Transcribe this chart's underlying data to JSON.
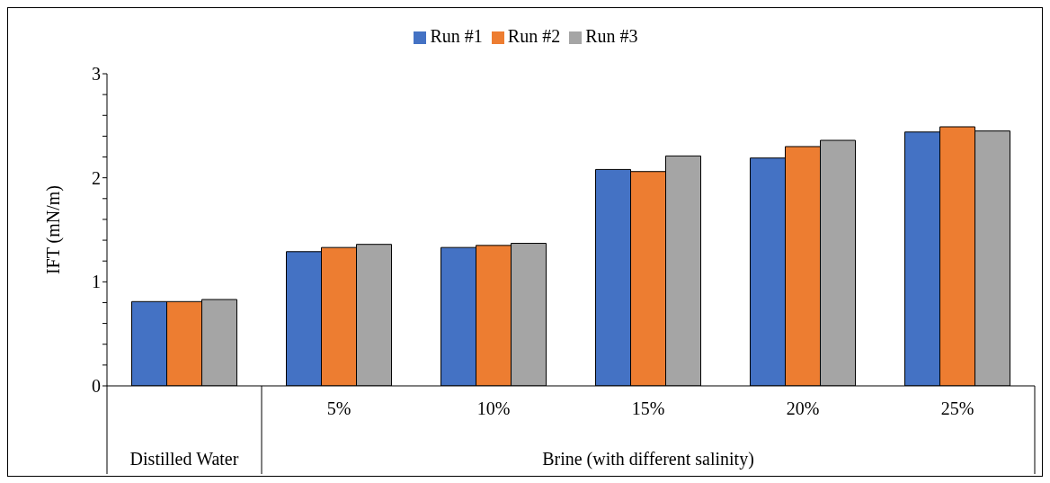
{
  "chart_data": {
    "type": "bar",
    "ylabel": "IFT (mN/m)",
    "categories": [
      null,
      "5%",
      "10%",
      "15%",
      "20%",
      "25%"
    ],
    "series": [
      {
        "name": "Run #1",
        "color": "#4472c4",
        "values": [
          0.81,
          1.29,
          1.33,
          2.08,
          2.19,
          2.44
        ]
      },
      {
        "name": "Run #2",
        "color": "#ed7d31",
        "values": [
          0.81,
          1.33,
          1.35,
          2.06,
          2.3,
          2.49
        ]
      },
      {
        "name": "Run #3",
        "color": "#a5a5a5",
        "values": [
          0.83,
          1.36,
          1.37,
          2.21,
          2.36,
          2.45
        ]
      }
    ],
    "ylim": [
      0,
      3
    ],
    "yticks": [
      0,
      {
        "value": 0.2,
        "label": null
      },
      {
        "value": 0.4,
        "label": null
      },
      {
        "value": 0.6,
        "label": null
      },
      {
        "value": 0.8,
        "label": null
      },
      1,
      {
        "value": 1.2,
        "label": null
      },
      {
        "value": 1.4,
        "label": null
      },
      {
        "value": 1.6,
        "label": null
      },
      {
        "value": 1.8,
        "label": null
      },
      2,
      {
        "value": 2.2,
        "label": null
      },
      {
        "value": 2.4,
        "label": null
      },
      {
        "value": 2.6,
        "label": null
      },
      {
        "value": 2.8,
        "label": null
      },
      3
    ],
    "annotations": [
      "Distilled Water",
      "Brine (with different salinity)"
    ],
    "grid": false,
    "legend": "top"
  }
}
